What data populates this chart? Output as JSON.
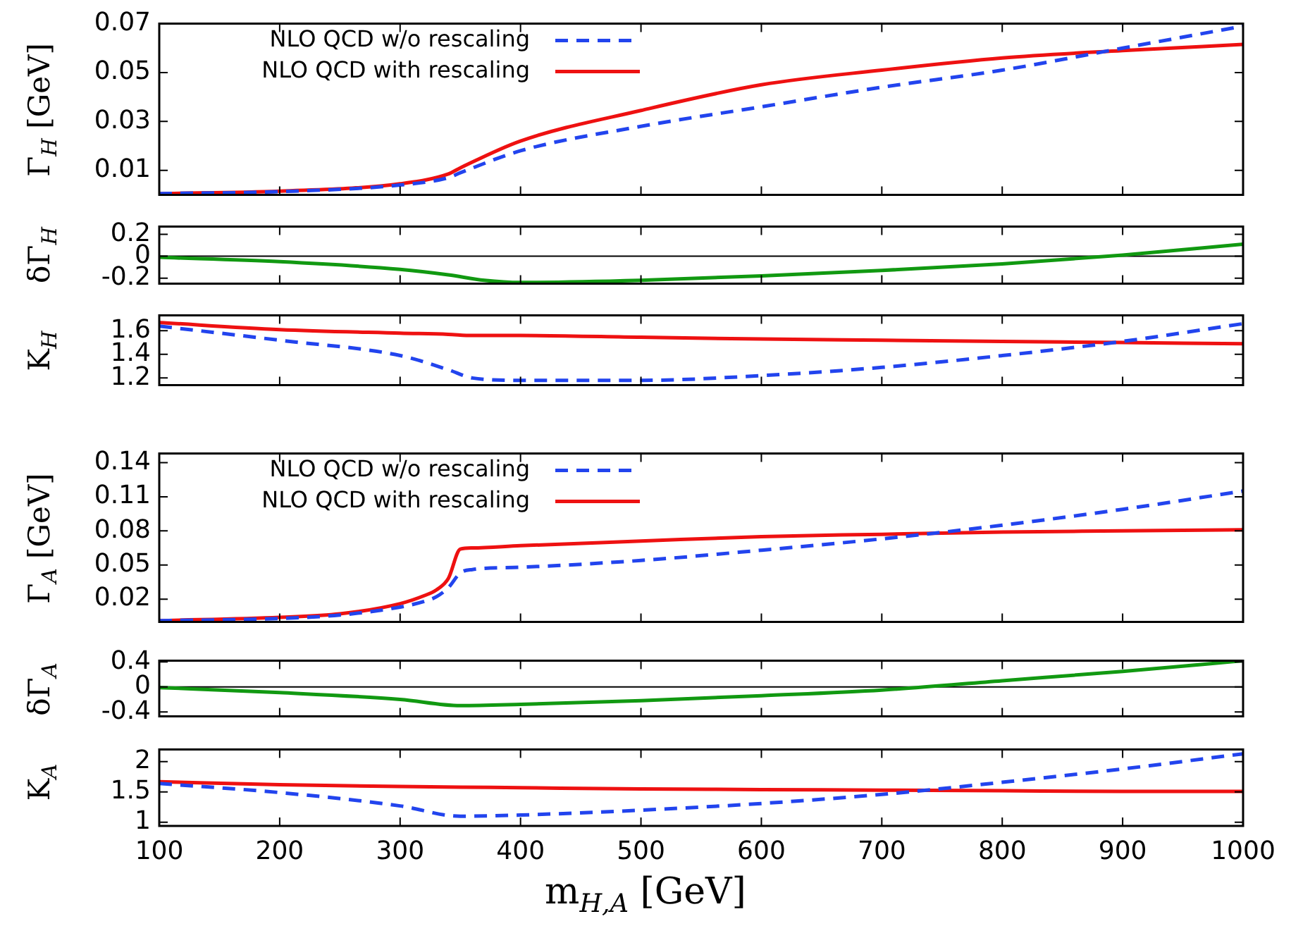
{
  "chart_data": [
    {
      "type": "line",
      "ylabel": "Γ$_{H}$  [GeV]",
      "x": [
        100,
        200,
        300,
        340,
        350,
        400,
        500,
        600,
        700,
        800,
        900,
        1000
      ],
      "xlim": [
        100,
        1000
      ],
      "xticks": [
        100,
        200,
        300,
        400,
        500,
        600,
        700,
        800,
        900,
        1000
      ],
      "ylim": [
        0,
        0.07
      ],
      "yticks": [
        0.01,
        0.03,
        0.05,
        0.07
      ],
      "tick_labels": "y",
      "legend": "top left",
      "marker": "none",
      "series": [
        {
          "name": "NLO QCD w/o rescaling",
          "color": "#2244ee",
          "line_style": "dashed",
          "values": [
            0.0005,
            0.0013,
            0.004,
            0.007,
            0.009,
            0.018,
            0.028,
            0.036,
            0.044,
            0.051,
            0.06,
            0.069
          ]
        },
        {
          "name": "NLO QCD with rescaling",
          "color": "#ee1111",
          "line_style": "solid",
          "values": [
            0.0005,
            0.0015,
            0.0045,
            0.0085,
            0.011,
            0.022,
            0.0345,
            0.045,
            0.051,
            0.056,
            0.059,
            0.0615
          ]
        }
      ]
    },
    {
      "type": "line",
      "ylabel": "δΓ$_{H}$",
      "x": [
        100,
        200,
        300,
        340,
        370,
        400,
        500,
        600,
        700,
        800,
        900,
        1000
      ],
      "xlim": [
        100,
        1000
      ],
      "xticks": [
        100,
        200,
        300,
        400,
        500,
        600,
        700,
        800,
        900,
        1000
      ],
      "ylim": [
        -0.25,
        0.27
      ],
      "yticks": [
        -0.2,
        0,
        0.2
      ],
      "tick_labels": "y",
      "marker": "none",
      "ref_lines": [
        {
          "axis": "y",
          "value": 0,
          "color": "#000000"
        }
      ],
      "series": [
        {
          "color": "#119911",
          "line_style": "solid",
          "values": [
            -0.01,
            -0.05,
            -0.12,
            -0.17,
            -0.22,
            -0.24,
            -0.22,
            -0.18,
            -0.13,
            -0.07,
            0.01,
            0.11
          ]
        }
      ]
    },
    {
      "type": "line",
      "ylabel": "K$_{H}$",
      "x": [
        100,
        200,
        300,
        340,
        360,
        400,
        500,
        600,
        700,
        800,
        900,
        1000
      ],
      "xlim": [
        100,
        1000
      ],
      "xticks": [
        100,
        200,
        300,
        400,
        500,
        600,
        700,
        800,
        900,
        1000
      ],
      "ylim": [
        1.14,
        1.73
      ],
      "yticks": [
        1.2,
        1.4,
        1.6
      ],
      "tick_labels": "y",
      "marker": "none",
      "series": [
        {
          "color": "#2244ee",
          "line_style": "dashed",
          "values": [
            1.64,
            1.52,
            1.39,
            1.27,
            1.2,
            1.18,
            1.18,
            1.22,
            1.29,
            1.39,
            1.51,
            1.66
          ]
        },
        {
          "color": "#ee1111",
          "line_style": "solid",
          "values": [
            1.67,
            1.61,
            1.58,
            1.57,
            1.56,
            1.56,
            1.545,
            1.53,
            1.52,
            1.51,
            1.5,
            1.49
          ]
        }
      ]
    },
    {
      "type": "line",
      "ylabel": "Γ$_{A}$  [GeV]",
      "x": [
        100,
        200,
        250,
        300,
        320,
        330,
        340,
        350,
        360,
        400,
        500,
        600,
        700,
        800,
        900,
        1000
      ],
      "xlim": [
        100,
        1000
      ],
      "xticks": [
        100,
        200,
        300,
        400,
        500,
        600,
        700,
        800,
        900,
        1000
      ],
      "ylim": [
        0,
        0.148
      ],
      "yticks": [
        0.02,
        0.05,
        0.08,
        0.11,
        0.14
      ],
      "tick_labels": "y",
      "legend": "top left",
      "marker": "none",
      "series": [
        {
          "name": "NLO QCD w/o rescaling",
          "color": "#2244ee",
          "line_style": "dashed",
          "values": [
            0.001,
            0.003,
            0.006,
            0.013,
            0.018,
            0.022,
            0.03,
            0.043,
            0.046,
            0.048,
            0.054,
            0.063,
            0.073,
            0.085,
            0.099,
            0.115
          ]
        },
        {
          "name": "NLO QCD with rescaling",
          "color": "#ee1111",
          "line_style": "solid",
          "values": [
            0.001,
            0.004,
            0.007,
            0.016,
            0.023,
            0.028,
            0.038,
            0.064,
            0.065,
            0.067,
            0.071,
            0.075,
            0.077,
            0.079,
            0.08,
            0.081
          ]
        }
      ]
    },
    {
      "type": "line",
      "ylabel": "δΓ$_{A}$",
      "x": [
        100,
        200,
        300,
        350,
        400,
        500,
        600,
        700,
        800,
        900,
        1000
      ],
      "xlim": [
        100,
        1000
      ],
      "xticks": [
        100,
        200,
        300,
        400,
        500,
        600,
        700,
        800,
        900,
        1000
      ],
      "ylim": [
        -0.47,
        0.42
      ],
      "yticks": [
        -0.4,
        0,
        0.4
      ],
      "tick_labels": "y",
      "marker": "none",
      "ref_lines": [
        {
          "axis": "y",
          "value": 0,
          "color": "#000000"
        }
      ],
      "series": [
        {
          "color": "#119911",
          "line_style": "solid",
          "values": [
            -0.01,
            -0.09,
            -0.2,
            -0.3,
            -0.28,
            -0.22,
            -0.14,
            -0.05,
            0.1,
            0.25,
            0.42
          ]
        }
      ]
    },
    {
      "type": "line",
      "ylabel": "K$_{A}$",
      "xlabel": "m$_{H,A}$  [GeV]",
      "x": [
        100,
        200,
        300,
        350,
        400,
        500,
        600,
        700,
        800,
        900,
        1000
      ],
      "xlim": [
        100,
        1000
      ],
      "xticks": [
        100,
        200,
        300,
        400,
        500,
        600,
        700,
        800,
        900,
        1000
      ],
      "ylim": [
        0.94,
        2.2
      ],
      "yticks": [
        1,
        1.5,
        2
      ],
      "marker": "none",
      "series": [
        {
          "color": "#2244ee",
          "line_style": "dashed",
          "values": [
            1.64,
            1.49,
            1.27,
            1.1,
            1.12,
            1.2,
            1.31,
            1.46,
            1.66,
            1.88,
            2.13
          ]
        },
        {
          "color": "#ee1111",
          "line_style": "solid",
          "values": [
            1.67,
            1.62,
            1.59,
            1.58,
            1.57,
            1.55,
            1.54,
            1.53,
            1.52,
            1.51,
            1.51
          ]
        }
      ]
    }
  ]
}
